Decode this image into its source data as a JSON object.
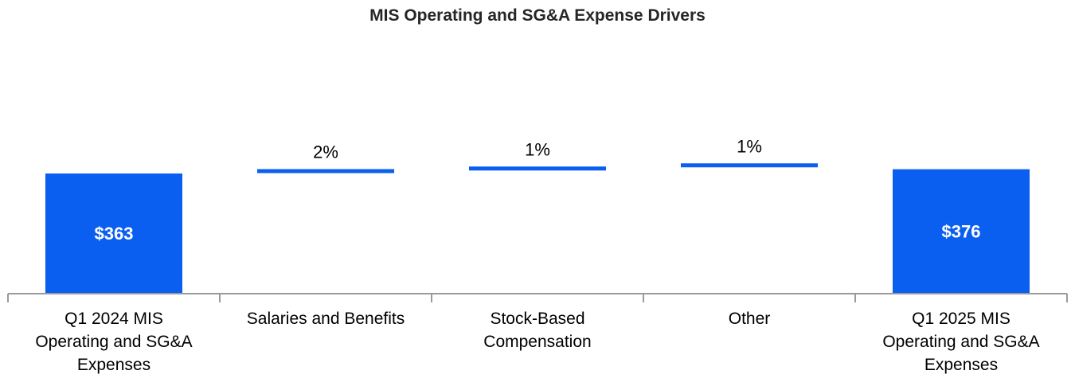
{
  "chart_data": {
    "type": "bar",
    "variant": "waterfall",
    "title": "MIS Operating and SG&A Expense Drivers",
    "xlabel": "",
    "ylabel": "",
    "grid": false,
    "legend": "none",
    "categories": [
      "Q1 2024 MIS\nOperating and SG&A\nExpenses",
      "Salaries and Benefits",
      "Stock-Based\nCompensation",
      "Other",
      "Q1 2025 MIS\nOperating and SG&A\nExpenses"
    ],
    "bars": [
      {
        "kind": "total",
        "value": 363,
        "label": "$363"
      },
      {
        "kind": "delta",
        "value": 6,
        "label": "2%"
      },
      {
        "kind": "delta",
        "value": 3,
        "label": "1%"
      },
      {
        "kind": "delta",
        "value": 4,
        "label": "1%"
      },
      {
        "kind": "total",
        "value": 376,
        "label": "$376"
      }
    ],
    "ylim": [
      0,
      500
    ]
  },
  "colors": {
    "bar": "#0a5ff0",
    "axis": "#9a9a9a",
    "title": "#262626",
    "text": "#000000",
    "bar_label": "#ffffff"
  }
}
